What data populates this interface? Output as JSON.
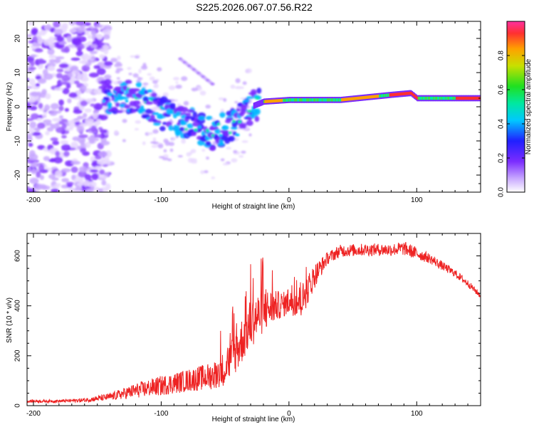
{
  "title": "S225.2026.067.07.56.R22",
  "chart_data": [
    {
      "type": "heatmap",
      "name": "spectrogram",
      "xlabel": "Height of straight line (km)",
      "ylabel": "Frequency (Hz)",
      "xlim": [
        -205,
        150
      ],
      "ylim": [
        -25,
        25
      ],
      "xticks": [
        -200,
        -100,
        0,
        100
      ],
      "yticks": [
        -20,
        -10,
        0,
        10,
        20
      ],
      "colorbar": {
        "label": "Normalized spectral amplitude",
        "range": [
          0,
          1
        ],
        "ticks": [
          "0.0",
          "0.2",
          "0.4",
          "0.6",
          "0.8"
        ]
      },
      "ridge": {
        "description_points": [
          {
            "x": -140,
            "freq": 3
          },
          {
            "x": -120,
            "freq": 3
          },
          {
            "x": -100,
            "freq": -2
          },
          {
            "x": -80,
            "freq": -5
          },
          {
            "x": -60,
            "freq": -8
          },
          {
            "x": -45,
            "freq": -5
          },
          {
            "x": -30,
            "freq": 0
          },
          {
            "x": -20,
            "freq": 1.5
          },
          {
            "x": 0,
            "freq": 2
          },
          {
            "x": 40,
            "freq": 2
          },
          {
            "x": 80,
            "freq": 3.5
          },
          {
            "x": 95,
            "freq": 4
          },
          {
            "x": 100,
            "freq": 2.5
          },
          {
            "x": 150,
            "freq": 2.5
          }
        ]
      }
    },
    {
      "type": "line",
      "name": "snr",
      "xlabel": "Height of straight line (km)",
      "ylabel": "SNR (10 * v/v)",
      "xlim": [
        -205,
        150
      ],
      "ylim": [
        0,
        690
      ],
      "xticks": [
        -200,
        -100,
        0,
        100
      ],
      "yticks": [
        0,
        200,
        400,
        600
      ],
      "series": [
        {
          "name": "SNR",
          "color": "#ee2222",
          "envelope_x": [
            -205,
            -180,
            -160,
            -140,
            -120,
            -100,
            -80,
            -60,
            -50,
            -40,
            -30,
            -20,
            -10,
            0,
            10,
            20,
            30,
            40,
            60,
            80,
            90,
            100,
            110,
            120,
            130,
            140,
            150
          ],
          "envelope_y": [
            18,
            18,
            22,
            35,
            60,
            80,
            100,
            120,
            150,
            230,
            330,
            380,
            400,
            410,
            420,
            520,
            590,
            620,
            625,
            625,
            630,
            610,
            590,
            560,
            530,
            490,
            440
          ],
          "noise_amp": [
            6,
            6,
            8,
            15,
            30,
            40,
            45,
            55,
            70,
            90,
            100,
            90,
            60,
            45,
            70,
            50,
            25,
            25,
            25,
            25,
            28,
            25,
            20,
            18,
            16,
            14,
            12
          ]
        }
      ]
    }
  ],
  "colors": {
    "line": "#ee2222",
    "ridge_low": "#7b2cff",
    "ridge_high": "#ff2a2a"
  }
}
